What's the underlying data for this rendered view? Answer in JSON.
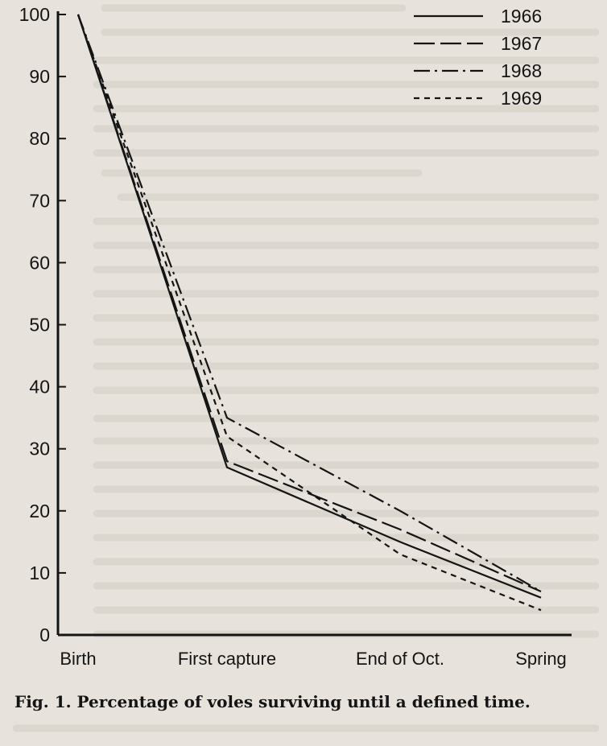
{
  "caption": "Fig. 1. Percentage of voles surviving until a defined time.",
  "chart_data": {
    "type": "line",
    "categories": [
      "Birth",
      "First capture",
      "End of Oct.",
      "Spring"
    ],
    "ylim": [
      0,
      100
    ],
    "yticks": [
      0,
      10,
      20,
      30,
      40,
      50,
      60,
      70,
      80,
      90,
      100
    ],
    "legend_position": "top-right",
    "grid": false,
    "series": [
      {
        "name": "1966",
        "dash": "solid",
        "values": [
          100,
          27,
          15,
          6
        ]
      },
      {
        "name": "1967",
        "dash": "long-dash",
        "values": [
          100,
          28,
          17,
          7
        ]
      },
      {
        "name": "1968",
        "dash": "dash-dot",
        "values": [
          100,
          35,
          20,
          7
        ]
      },
      {
        "name": "1969",
        "dash": "short-dash",
        "values": [
          100,
          32,
          13,
          4
        ]
      }
    ]
  }
}
